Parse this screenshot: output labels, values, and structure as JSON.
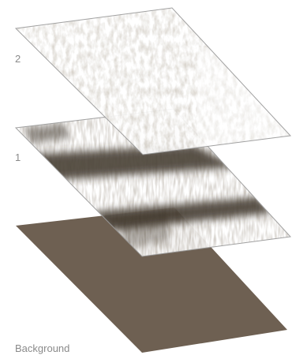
{
  "diagram": {
    "title": "",
    "layers": [
      {
        "id": "background",
        "label": "Background",
        "fill": "#6e6052",
        "texture": "solid"
      },
      {
        "id": "layer-1",
        "label": "1",
        "fill": "#ffffff",
        "texture": "horizontal-dark-streaks",
        "streak_color": "#3b3226"
      },
      {
        "id": "layer-2",
        "label": "2",
        "fill": "#ffffff",
        "texture": "light-scratchy-grain",
        "grain_color": "#9d9284"
      }
    ],
    "outline_color": "#9a9a9a",
    "label_color": "#8a8a8a"
  }
}
